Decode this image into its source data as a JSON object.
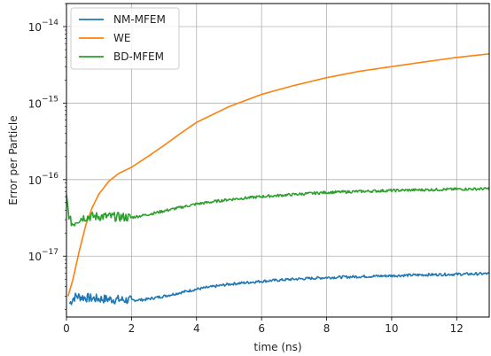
{
  "chart_data": {
    "type": "line",
    "title": "",
    "xlabel": "time (ns)",
    "ylabel": "Error per Particle",
    "xlim": [
      0,
      13
    ],
    "ylim": [
      1.6e-18,
      2e-14
    ],
    "yscale": "log",
    "grid": true,
    "legend_position": "top-left",
    "x_ticks": [
      0,
      2,
      4,
      6,
      8,
      10,
      12
    ],
    "y_ticks": [
      {
        "value": 1e-17,
        "base": "10",
        "exp": "−17"
      },
      {
        "value": 1e-16,
        "base": "10",
        "exp": "−16"
      },
      {
        "value": 1e-15,
        "base": "10",
        "exp": "−15"
      },
      {
        "value": 1e-14,
        "base": "10",
        "exp": "−14"
      }
    ],
    "series": [
      {
        "name": "NM-MFEM",
        "color": "#1f77b4",
        "x": [
          0.1,
          0.2,
          0.3,
          0.5,
          0.8,
          1.2,
          1.6,
          2.0,
          2.4,
          3.0,
          4.0,
          5.0,
          6.0,
          7.0,
          8.0,
          9.0,
          10.0,
          11.0,
          12.0,
          13.0
        ],
        "y": [
          2.4e-18,
          2.8e-18,
          3e-18,
          2.9e-18,
          2.8e-18,
          2.75e-18,
          2.7e-18,
          2.65e-18,
          2.7e-18,
          3e-18,
          3.7e-18,
          4.3e-18,
          4.7e-18,
          5e-18,
          5.25e-18,
          5.4e-18,
          5.55e-18,
          5.7e-18,
          5.8e-18,
          5.9e-18
        ],
        "noise": true
      },
      {
        "name": "WE",
        "color": "#ff7f0e",
        "x": [
          0.05,
          0.2,
          0.4,
          0.6,
          0.8,
          1.0,
          1.3,
          1.6,
          2.0,
          2.5,
          3.0,
          3.5,
          4.0,
          5.0,
          6.0,
          7.0,
          8.0,
          9.0,
          10.0,
          11.0,
          12.0,
          13.0
        ],
        "y": [
          3e-18,
          5e-18,
          1.2e-17,
          2.6e-17,
          4.4e-17,
          6.5e-17,
          9.5e-17,
          1.2e-16,
          1.45e-16,
          2e-16,
          2.8e-16,
          4e-16,
          5.6e-16,
          9e-16,
          1.3e-15,
          1.7e-15,
          2.15e-15,
          2.6e-15,
          3e-15,
          3.45e-15,
          3.95e-15,
          4.4e-15
        ],
        "noise": false
      },
      {
        "name": "BD-MFEM",
        "color": "#2ca02c",
        "x": [
          0.0,
          0.05,
          0.1,
          0.2,
          0.3,
          0.5,
          0.8,
          1.2,
          1.6,
          2.0,
          2.5,
          3.0,
          4.0,
          5.0,
          6.0,
          7.0,
          8.0,
          9.0,
          10.0,
          11.0,
          12.0,
          13.0
        ],
        "y": [
          6e-17,
          4e-17,
          3e-17,
          2.6e-17,
          2.9e-17,
          3.2e-17,
          3.3e-17,
          3.3e-17,
          3.25e-17,
          3.2e-17,
          3.5e-17,
          3.9e-17,
          4.8e-17,
          5.5e-17,
          6e-17,
          6.4e-17,
          6.8e-17,
          7e-17,
          7.2e-17,
          7.35e-17,
          7.5e-17,
          7.6e-17
        ],
        "noise": true
      }
    ]
  }
}
